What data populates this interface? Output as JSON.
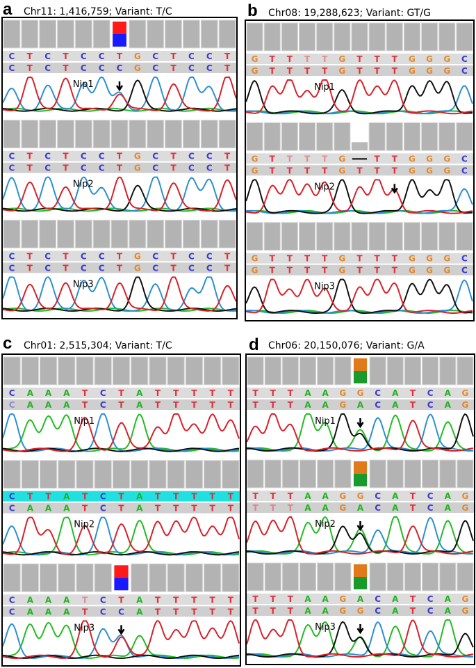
{
  "colors": {
    "A": "#1fb51f",
    "C": "#3a3ad0",
    "G": "#e0892e",
    "T": "#e0303a",
    "trace_A": "#22bb22",
    "trace_C": "#2b8fd0",
    "trace_G": "#111111",
    "trace_T": "#d8202a"
  },
  "panels": [
    {
      "letter": "a",
      "title": "Chr11: 1,416,759; Variant: T/C",
      "samples": [
        {
          "name": "Nip1",
          "seq1": "CTCTCCTGCTCCT",
          "seq2": "CTCTCCCGCTCCT",
          "het": 6,
          "het_colors": [
            "#ff1a1a",
            "#1a1aff"
          ],
          "arrow": 6,
          "gap": -1,
          "pale1": []
        },
        {
          "name": "Nip2",
          "seq1": "CTCTCCTGCTCCT",
          "seq2": "CTCTCCTGCTCCT",
          "het": -1,
          "het_colors": [],
          "arrow": -1,
          "gap": -1,
          "pale1": []
        },
        {
          "name": "Nip3",
          "seq1": "CTCTCCTGCTCCT",
          "seq2": "CTCTCCTGCTCCT",
          "het": -1,
          "het_colors": [],
          "arrow": -1,
          "gap": -1,
          "pale1": []
        }
      ]
    },
    {
      "letter": "b",
      "title": "Chr08: 19,288,623; Variant: GT/G",
      "samples": [
        {
          "name": "Nip1",
          "seq1": "GTTTTGTTTGGGC",
          "seq2": "GTTTTGTTTGGGC",
          "het": -1,
          "het_colors": [],
          "arrow": -1,
          "gap": -1,
          "pale1": [
            3,
            4
          ]
        },
        {
          "name": "Nip2",
          "seq1": "GTTTTG-TTGGGC",
          "seq2": "GTTTTGTTTGGGC",
          "het": -1,
          "het_colors": [],
          "arrow": 8,
          "gap": 6,
          "pale1": [
            2,
            3,
            4
          ]
        },
        {
          "name": "Nip3",
          "seq1": "GTTTTGTTTGGGC",
          "seq2": "GTTTTGTTTGGGC",
          "het": -1,
          "het_colors": [],
          "arrow": -1,
          "gap": -1,
          "pale1": []
        }
      ]
    },
    {
      "letter": "c",
      "title": "Chr01: 2,515,304; Variant: T/C",
      "samples": [
        {
          "name": "Nip1",
          "seq1": "CAAATCTATTTTT",
          "seq2": "CAAATCTATTTTT",
          "het": -1,
          "het_colors": [],
          "arrow": -1,
          "gap": -1,
          "pale1": [],
          "pale2": [
            0
          ]
        },
        {
          "name": "Nip2",
          "seq1": "CTTATCTATTTTT",
          "seq2": "CAAATCTATTTTT",
          "het": -1,
          "het_colors": [],
          "arrow": -1,
          "gap": -1,
          "pale1": [],
          "highlight": "#22e0e0"
        },
        {
          "name": "Nip3",
          "seq1": "CAAATCTATTTTT",
          "seq2": "CAAATCCATTTTT",
          "het": 6,
          "het_colors": [
            "#ff1a1a",
            "#1a1aff"
          ],
          "arrow": 6,
          "gap": -1,
          "pale1": [
            4
          ]
        }
      ]
    },
    {
      "letter": "d",
      "title": "Chr06: 20,150,076; Variant: G/A",
      "samples": [
        {
          "name": "Nip1",
          "seq1": "TTTAAGGCATCAG",
          "seq2": "TTTAAGACATCAG",
          "het": 6,
          "het_colors": [
            "#e07a1a",
            "#1a9a2a"
          ],
          "arrow": 6,
          "gap": -1,
          "pale1": []
        },
        {
          "name": "Nip2",
          "seq1": "TTTAAGGCATCAG",
          "seq2": "TTTAAGACATCAG",
          "het": 6,
          "het_colors": [
            "#e07a1a",
            "#1a9a2a"
          ],
          "arrow": 6,
          "gap": -1,
          "pale1": [],
          "pale2": [
            0,
            1,
            2
          ]
        },
        {
          "name": "Nip3",
          "seq1": "TTTAAGACATCAG",
          "seq2": "TTTAAGGCATCAG",
          "het": 6,
          "het_colors": [
            "#e07a1a",
            "#1a9a2a"
          ],
          "arrow": 6,
          "gap": -1,
          "pale1": []
        }
      ]
    }
  ]
}
